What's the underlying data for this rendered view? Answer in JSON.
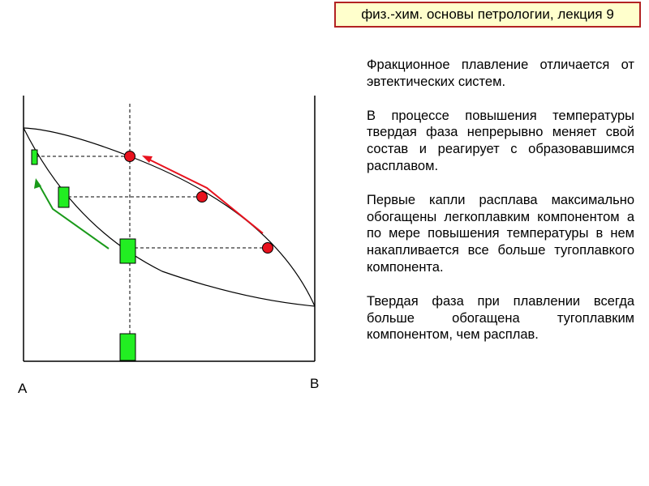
{
  "header": {
    "title": "физ.-хим. основы петрологии, лекция 9"
  },
  "diagram": {
    "label_a": "A",
    "label_b": "B",
    "colors": {
      "liquid_point": "#e8121e",
      "solid_bar": "#22ee22",
      "arrow_red": "#e8121e",
      "arrow_green": "#1a9a1a"
    }
  },
  "text": {
    "p1": "Фракционное плавление отличается от эвтектических систем.",
    "p2": "В процессе повышения температуры твердая фаза непрерывно меняет свой состав и реагирует с образовавшимся расплавом.",
    "p3": "Первые капли расплава максимально обогащены легкоплавким компонентом а по мере повышения температуры в нем накапливается все больше тугоплавкого компонента.",
    "p4": "Твердая фаза при плавлении всегда больше обогащена тугоплавким компонентом, чем расплав."
  }
}
